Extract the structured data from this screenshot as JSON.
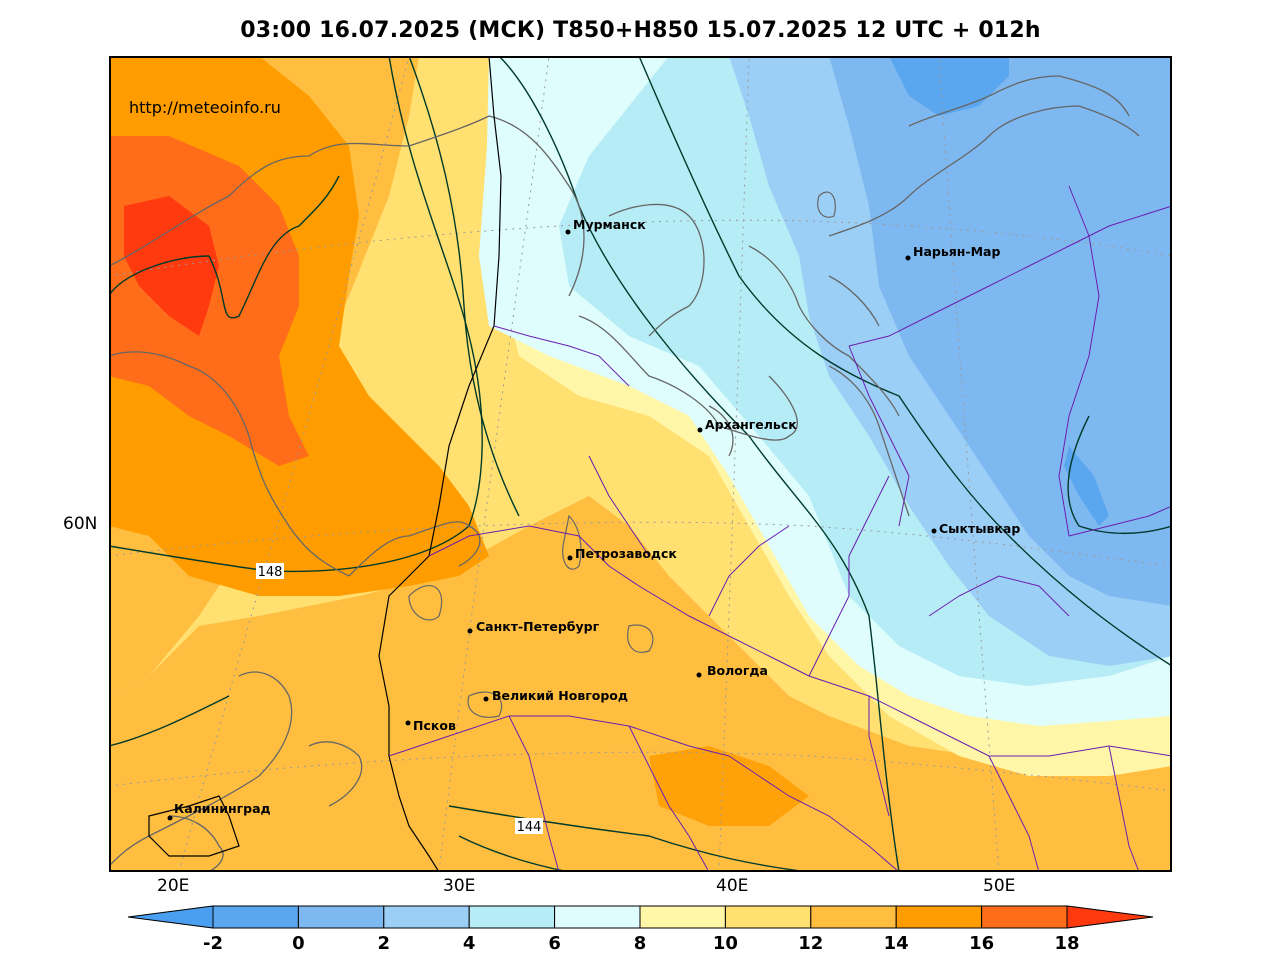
{
  "title": "03:00 16.07.2025 (МСК) T850+H850 15.07.2025 12 UTC + 012h",
  "watermark": "http://meteoinfo.ru",
  "lat_labels": [
    "60N"
  ],
  "lon_labels": [
    "20E",
    "30E",
    "40E",
    "50E"
  ],
  "contours": [
    "148",
    "144"
  ],
  "cities": [
    {
      "name": "Мурманск"
    },
    {
      "name": "Нарьян-Мар"
    },
    {
      "name": "Архангельск"
    },
    {
      "name": "Сыктывкар"
    },
    {
      "name": "Петрозаводск"
    },
    {
      "name": "Санкт-Петербург"
    },
    {
      "name": "Вологда"
    },
    {
      "name": "Великий Новгород"
    },
    {
      "name": "Псков"
    },
    {
      "name": "Калининград"
    }
  ],
  "legend": {
    "ticks": [
      "-2",
      "0",
      "2",
      "4",
      "6",
      "8",
      "10",
      "12",
      "14",
      "16",
      "18"
    ],
    "colors": [
      "#4b9ff0",
      "#5aa7f0",
      "#7eb8f0",
      "#9ccff6",
      "#b6ecf6",
      "#dffdfd",
      "#fff6a8",
      "#ffe070",
      "#ffbe40",
      "#ff9d00",
      "#ff6d1a",
      "#ff3a0e"
    ]
  }
}
